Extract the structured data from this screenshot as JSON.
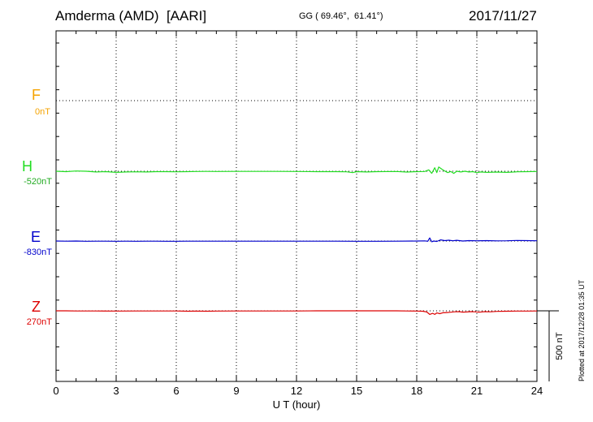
{
  "header": {
    "station": "Amderma (AMD)  [AARI]",
    "coords": "GG ( 69.46°,  61.41°)",
    "date": "2017/11/27"
  },
  "footer": {
    "plotted": "Plotted at 2017/12/28 01:35 UT"
  },
  "chart_data": {
    "type": "line",
    "xlabel": "U T (hour)",
    "xlim": [
      0,
      24
    ],
    "xticks": [
      "0",
      "3",
      "6",
      "9",
      "12",
      "15",
      "18",
      "21",
      "24"
    ],
    "scale_bar": "500 nT",
    "grid": true,
    "series": [
      {
        "name": "F",
        "baseline_label": "0nT",
        "color": "#f5a300",
        "points": []
      },
      {
        "name": "H",
        "baseline_label": "-520nT",
        "color": "#22dd22",
        "points": [
          [
            0,
            0
          ],
          [
            0.5,
            -3
          ],
          [
            1,
            2
          ],
          [
            1.5,
            0
          ],
          [
            2,
            -5
          ],
          [
            2.5,
            -3
          ],
          [
            3,
            -8
          ],
          [
            3.5,
            -5
          ],
          [
            4,
            -4
          ],
          [
            4.5,
            -5
          ],
          [
            5,
            -3
          ],
          [
            5.5,
            -3
          ],
          [
            6,
            -4
          ],
          [
            6.5,
            -3
          ],
          [
            7,
            -2
          ],
          [
            7.5,
            -1
          ],
          [
            8,
            -2
          ],
          [
            9,
            -1
          ],
          [
            10,
            -1
          ],
          [
            11,
            -1
          ],
          [
            12,
            -2
          ],
          [
            13,
            -3
          ],
          [
            14,
            -3
          ],
          [
            14.5,
            -4
          ],
          [
            14.8,
            -10
          ],
          [
            15,
            -3
          ],
          [
            15.5,
            -5
          ],
          [
            16,
            -3
          ],
          [
            17,
            -2
          ],
          [
            17.5,
            -6
          ],
          [
            18,
            -3
          ],
          [
            18.4,
            -2
          ],
          [
            18.6,
            10
          ],
          [
            18.75,
            -15
          ],
          [
            18.9,
            25
          ],
          [
            19.0,
            -10
          ],
          [
            19.1,
            30
          ],
          [
            19.25,
            15
          ],
          [
            19.4,
            2
          ],
          [
            19.55,
            -10
          ],
          [
            19.7,
            -2
          ],
          [
            19.85,
            -15
          ],
          [
            20.0,
            0
          ],
          [
            20.2,
            -5
          ],
          [
            20.4,
            0
          ],
          [
            20.6,
            -5
          ],
          [
            20.8,
            -3
          ],
          [
            21,
            -10
          ],
          [
            21.2,
            -5
          ],
          [
            21.5,
            -8
          ],
          [
            22,
            -6
          ],
          [
            22.5,
            -8
          ],
          [
            23,
            -4
          ],
          [
            23.5,
            -3
          ],
          [
            24,
            -2
          ]
        ]
      },
      {
        "name": "E",
        "baseline_label": "-830nT",
        "color": "#0000cc",
        "points": [
          [
            0,
            0
          ],
          [
            0.5,
            -1
          ],
          [
            1,
            0
          ],
          [
            1.5,
            -2
          ],
          [
            2,
            -1
          ],
          [
            2.5,
            -1
          ],
          [
            3,
            -2
          ],
          [
            3.5,
            -1
          ],
          [
            4,
            -2
          ],
          [
            4.5,
            -1
          ],
          [
            5,
            -1
          ],
          [
            5.5,
            -2
          ],
          [
            6,
            -2
          ],
          [
            6.5,
            -1
          ],
          [
            7,
            -1
          ],
          [
            8,
            -1
          ],
          [
            9,
            -1
          ],
          [
            10,
            -1
          ],
          [
            11,
            -1
          ],
          [
            12,
            -1
          ],
          [
            13,
            -1
          ],
          [
            14,
            -1
          ],
          [
            15,
            -2
          ],
          [
            16,
            -2
          ],
          [
            17,
            -1
          ],
          [
            18,
            0
          ],
          [
            18.4,
            1
          ],
          [
            18.55,
            -2
          ],
          [
            18.65,
            22
          ],
          [
            18.75,
            -5
          ],
          [
            18.85,
            0
          ],
          [
            19.0,
            -3
          ],
          [
            19.2,
            8
          ],
          [
            19.4,
            3
          ],
          [
            19.6,
            6
          ],
          [
            19.8,
            2
          ],
          [
            20.0,
            5
          ],
          [
            20.3,
            0
          ],
          [
            20.6,
            3
          ],
          [
            21,
            2
          ],
          [
            21.5,
            3
          ],
          [
            22,
            1
          ],
          [
            22.5,
            2
          ],
          [
            23,
            4
          ],
          [
            23.5,
            3
          ],
          [
            24,
            2
          ]
        ]
      },
      {
        "name": "Z",
        "baseline_label": "270nT",
        "color": "#dd0000",
        "points": [
          [
            0,
            0
          ],
          [
            0.5,
            0
          ],
          [
            1,
            -1
          ],
          [
            2,
            -1
          ],
          [
            3,
            -2
          ],
          [
            4,
            -1
          ],
          [
            5,
            -1
          ],
          [
            6,
            -1
          ],
          [
            6.6,
            -3
          ],
          [
            7,
            -2
          ],
          [
            7.5,
            -3
          ],
          [
            8,
            -2
          ],
          [
            9,
            -1
          ],
          [
            10,
            -1
          ],
          [
            11,
            -1
          ],
          [
            12,
            -1
          ],
          [
            13,
            0
          ],
          [
            14,
            0
          ],
          [
            15,
            0
          ],
          [
            16,
            0
          ],
          [
            17,
            0
          ],
          [
            17.5,
            -1
          ],
          [
            18,
            -2
          ],
          [
            18.3,
            -3
          ],
          [
            18.5,
            -8
          ],
          [
            18.65,
            -25
          ],
          [
            18.8,
            -18
          ],
          [
            18.9,
            -25
          ],
          [
            19.0,
            -15
          ],
          [
            19.15,
            -20
          ],
          [
            19.3,
            -14
          ],
          [
            19.5,
            -12
          ],
          [
            19.7,
            -10
          ],
          [
            19.9,
            -7
          ],
          [
            20.1,
            -6
          ],
          [
            20.3,
            -9
          ],
          [
            20.5,
            -8
          ],
          [
            20.7,
            -6
          ],
          [
            20.9,
            -7
          ],
          [
            21.1,
            -10
          ],
          [
            21.4,
            -6
          ],
          [
            21.7,
            -7
          ],
          [
            22,
            -4
          ],
          [
            22.5,
            -3
          ],
          [
            23,
            -2
          ],
          [
            23.5,
            -2
          ],
          [
            24,
            -1
          ]
        ]
      }
    ]
  }
}
